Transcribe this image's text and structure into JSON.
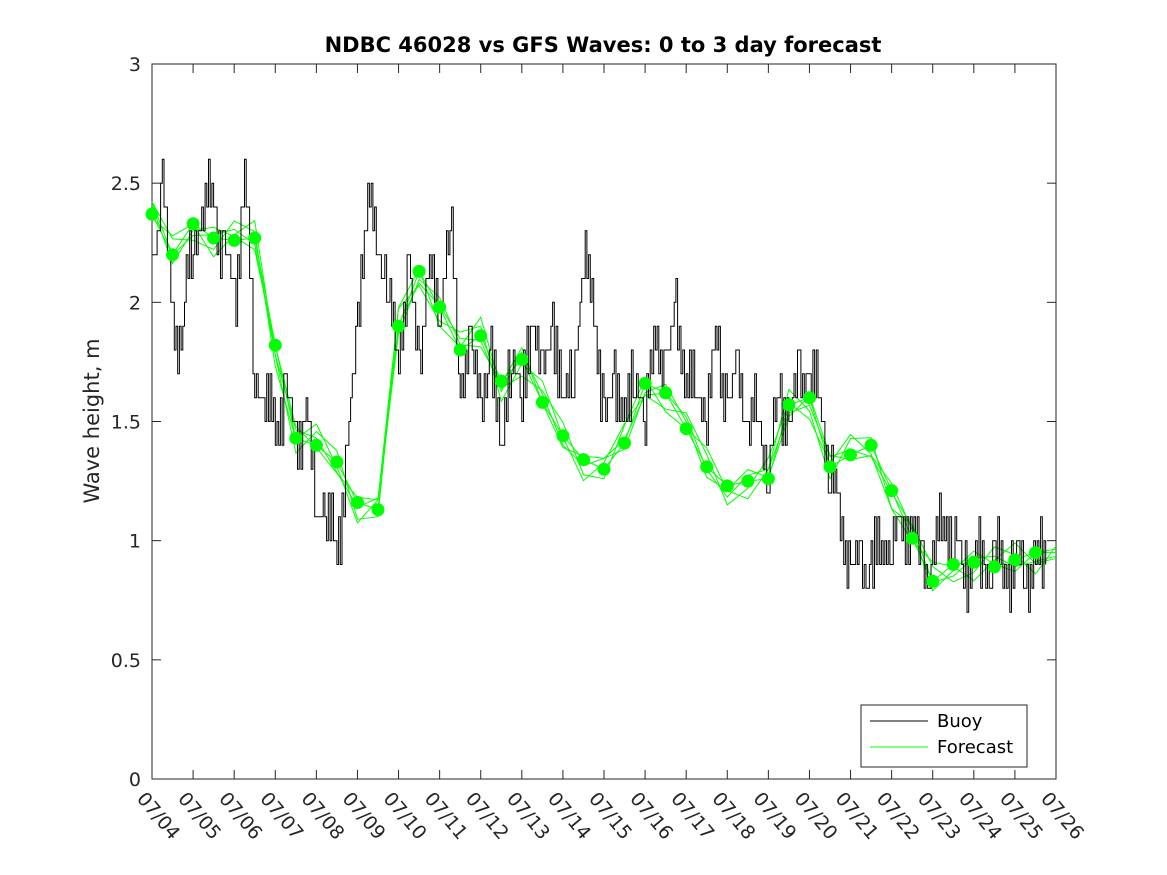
{
  "chart_data": {
    "type": "line",
    "title": "NDBC 46028 vs GFS Waves: 0 to 3 day forecast",
    "xlabel": "",
    "ylabel": "Wave height, m",
    "xlim": [
      0,
      22
    ],
    "ylim": [
      0,
      3
    ],
    "x_tick_labels": [
      "07/04",
      "07/05",
      "07/06",
      "07/07",
      "07/08",
      "07/09",
      "07/10",
      "07/11",
      "07/12",
      "07/13",
      "07/14",
      "07/15",
      "07/16",
      "07/17",
      "07/18",
      "07/19",
      "07/20",
      "07/21",
      "07/22",
      "07/23",
      "07/24",
      "07/25",
      "07/26"
    ],
    "y_ticks": [
      0,
      0.5,
      1,
      1.5,
      2,
      2.5,
      3
    ],
    "y_tick_labels": [
      "0",
      "0.5",
      "1",
      "1.5",
      "2",
      "2.5",
      "3"
    ],
    "grid": false,
    "legend": {
      "position": "bottom-right",
      "entries": [
        "Buoy",
        "Forecast"
      ]
    },
    "colors": {
      "buoy": "#000000",
      "forecast": "#00ff00",
      "axis": "#262626"
    },
    "series": [
      {
        "name": "Buoy",
        "x": [
          0,
          0.25,
          0.5,
          0.75,
          1.0,
          1.25,
          1.5,
          1.75,
          2.0,
          2.25,
          2.5,
          2.75,
          3.0,
          3.25,
          3.5,
          3.75,
          4.0,
          4.25,
          4.5,
          4.75,
          5.0,
          5.25,
          5.5,
          5.75,
          6.0,
          6.25,
          6.5,
          6.75,
          7.0,
          7.25,
          7.5,
          7.75,
          8.0,
          8.25,
          8.5,
          8.75,
          9.0,
          9.25,
          9.5,
          9.75,
          10.0,
          10.25,
          10.5,
          10.75,
          11.0,
          11.25,
          11.5,
          11.75,
          12.0,
          12.25,
          12.5,
          12.75,
          13.0,
          13.25,
          13.5,
          13.75,
          14.0,
          14.25,
          14.5,
          14.75,
          15.0,
          15.25,
          15.5,
          15.75,
          16.0,
          16.25,
          16.5,
          16.75,
          17.0,
          17.25,
          17.5,
          17.75,
          18.0,
          18.25,
          18.5,
          18.75,
          19.0,
          19.25,
          19.5,
          19.75,
          20.0,
          20.25,
          20.5,
          20.75,
          21.0,
          21.25,
          21.5,
          21.75
        ],
        "y": [
          2.2,
          2.5,
          1.9,
          1.9,
          2.3,
          2.4,
          2.4,
          2.2,
          2.0,
          2.5,
          1.7,
          1.6,
          1.5,
          1.6,
          1.4,
          1.5,
          1.2,
          1.1,
          1.0,
          1.3,
          2.0,
          2.4,
          2.3,
          2.0,
          1.85,
          2.1,
          1.8,
          2.1,
          2.0,
          2.3,
          1.7,
          1.8,
          1.6,
          1.7,
          1.5,
          1.7,
          1.7,
          1.8,
          1.8,
          1.8,
          1.7,
          1.6,
          2.3,
          1.9,
          1.6,
          1.6,
          1.6,
          1.6,
          1.6,
          1.8,
          1.8,
          1.9,
          1.7,
          1.6,
          1.6,
          1.8,
          1.6,
          1.7,
          1.5,
          1.5,
          1.3,
          1.6,
          1.5,
          1.7,
          1.7,
          1.6,
          1.3,
          1.1,
          0.9,
          0.9,
          0.9,
          1.0,
          1.0,
          1.1,
          1.0,
          0.9,
          0.9,
          1.1,
          1.0,
          0.9,
          0.9,
          0.9,
          0.9,
          0.9,
          0.9,
          0.9,
          0.9,
          0.9
        ]
      },
      {
        "name": "Forecast",
        "x": [
          0,
          0.5,
          1.0,
          1.5,
          2.0,
          2.5,
          3.0,
          3.5,
          4.0,
          4.5,
          5.0,
          5.5,
          6.0,
          6.5,
          7.0,
          7.5,
          8.0,
          8.5,
          9.0,
          9.5,
          10.0,
          10.5,
          11.0,
          11.5,
          12.0,
          12.5,
          13.0,
          13.5,
          14.0,
          14.5,
          15.0,
          15.5,
          16.0,
          16.5,
          17.0,
          17.5,
          18.0,
          18.5,
          19.0,
          19.5,
          20.0,
          20.5,
          21.0,
          21.5
        ],
        "y": [
          2.37,
          2.2,
          2.33,
          2.27,
          2.26,
          2.27,
          1.82,
          1.43,
          1.4,
          1.33,
          1.16,
          1.13,
          1.9,
          2.13,
          1.98,
          1.8,
          1.86,
          1.67,
          1.76,
          1.58,
          1.44,
          1.34,
          1.3,
          1.41,
          1.66,
          1.62,
          1.47,
          1.31,
          1.23,
          1.25,
          1.26,
          1.57,
          1.6,
          1.31,
          1.36,
          1.4,
          1.21,
          1.01,
          0.83,
          0.9,
          0.91,
          0.89,
          0.92,
          0.95
        ]
      }
    ]
  }
}
